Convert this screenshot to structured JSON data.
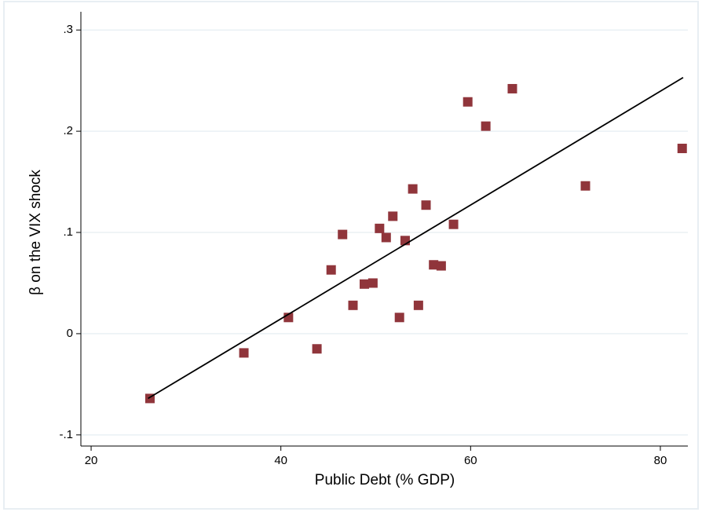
{
  "chart_data": {
    "type": "scatter",
    "xlabel": "Public Debt (% GDP)",
    "ylabel": "β on the VIX shock",
    "x": [
      26.2,
      36.1,
      40.8,
      43.8,
      45.3,
      46.5,
      47.6,
      48.8,
      49.7,
      50.4,
      51.1,
      51.8,
      52.5,
      53.1,
      53.9,
      54.5,
      55.3,
      56.1,
      56.9,
      58.2,
      59.7,
      61.6,
      64.4,
      72.1,
      82.3
    ],
    "values": [
      -0.064,
      -0.019,
      0.016,
      -0.015,
      0.063,
      0.098,
      0.028,
      0.049,
      0.05,
      0.104,
      0.095,
      0.116,
      0.016,
      0.092,
      0.143,
      0.028,
      0.127,
      0.068,
      0.067,
      0.108,
      0.229,
      0.205,
      0.242,
      0.146,
      0.183
    ],
    "color": "#90353b",
    "fit": {
      "x": [
        26.0,
        82.4
      ],
      "y": [
        -0.064,
        0.253
      ],
      "color": "#000000"
    },
    "xlim": [
      18.92,
      82.9
    ],
    "ylim": [
      -0.111,
      0.318
    ],
    "xticks": [
      20,
      40,
      60,
      80
    ],
    "yticks": [
      {
        "value": -0.1,
        "label": "-.1"
      },
      0,
      {
        "value": 0.1,
        "label": ".1"
      },
      {
        "value": 0.2,
        "label": ".2"
      },
      {
        "value": 0.3,
        "label": ".3"
      }
    ],
    "grid": true
  }
}
